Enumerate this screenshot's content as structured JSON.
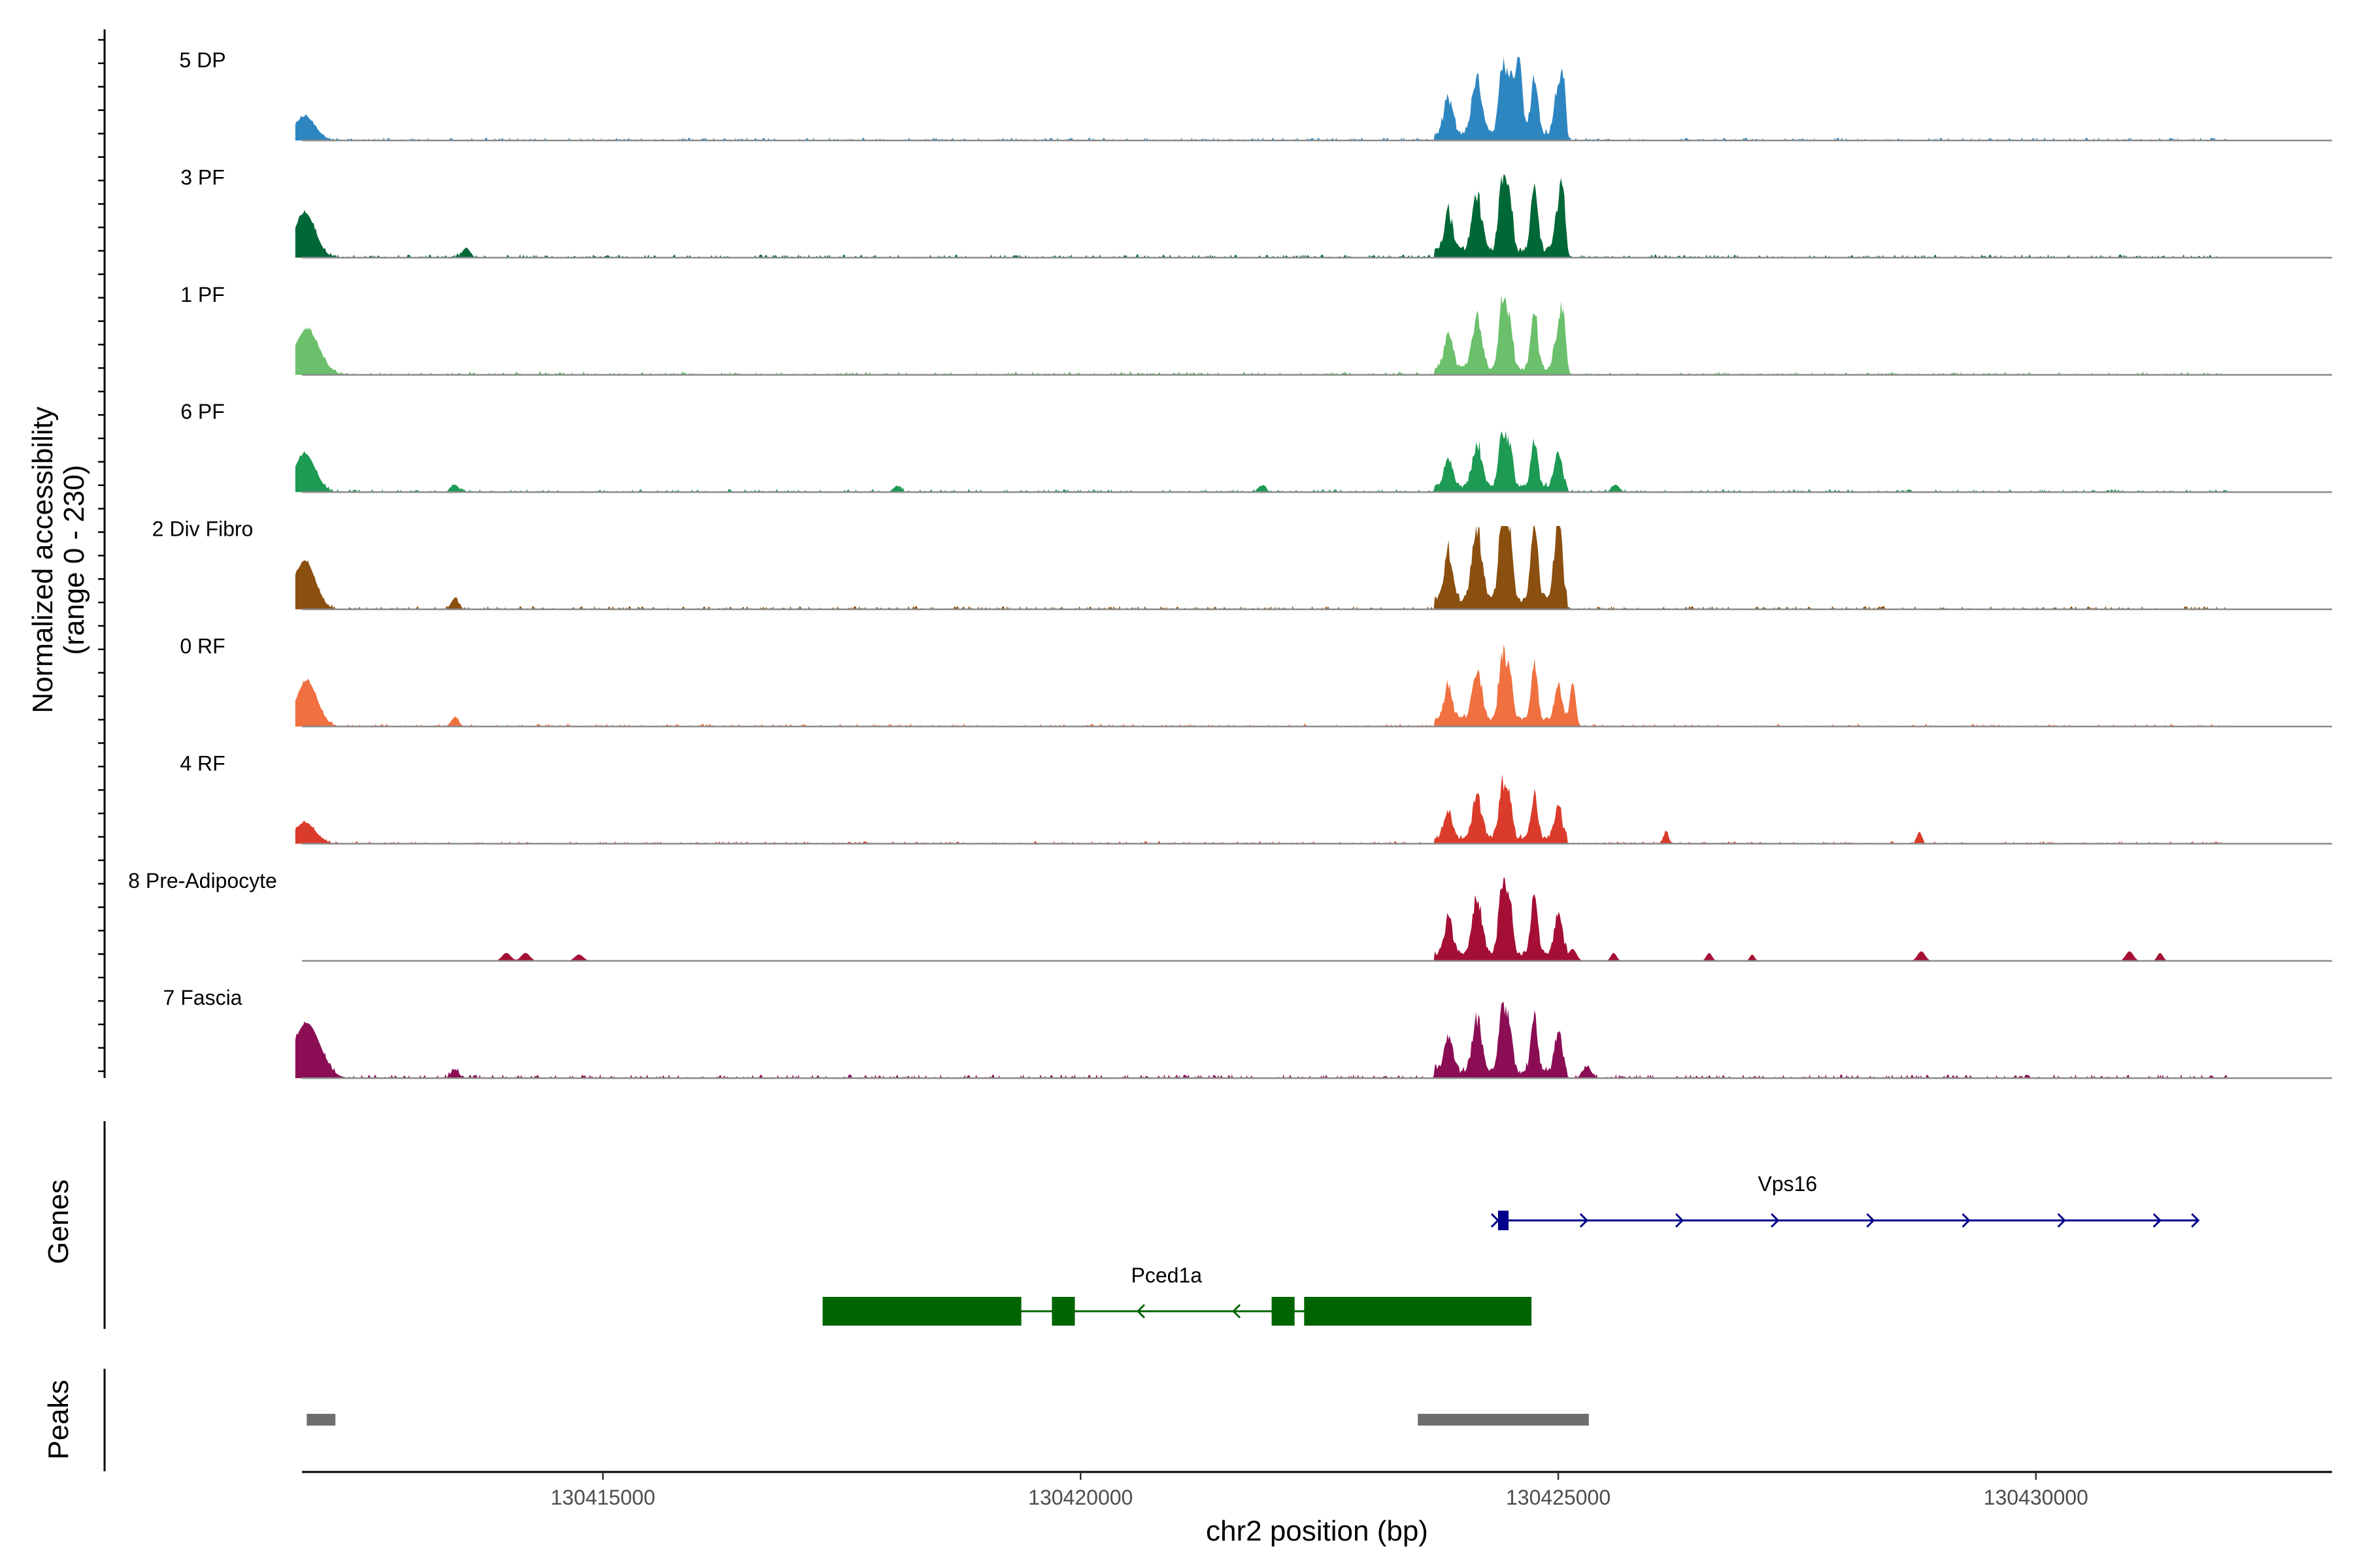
{
  "chart_data": {
    "type": "area",
    "title": "",
    "xlabel": "chr2 position (bp)",
    "ylabel_line1": "Normalized accessibility",
    "ylabel_line2": "(range 0 - 230)",
    "y_range": [
      0,
      230
    ],
    "xlim": [
      130411850,
      130433100
    ],
    "x_ticks": [
      130415000,
      130420000,
      130425000,
      130430000
    ],
    "x_tick_labels": [
      "130415000",
      "130420000",
      "130425000",
      "130430000"
    ],
    "track_panels": {
      "genes_label": "Genes",
      "peaks_label": "Peaks"
    },
    "series": [
      {
        "name": "5 DP",
        "color": "#2e86c1",
        "scale": 0.98,
        "baseline_noise": 0.035,
        "peaks": [
          [
            130411880,
            110,
            0.3
          ],
          [
            130424580,
            38,
            1.0
          ],
          [
            130425050,
            25,
            0.6
          ]
        ]
      },
      {
        "name": "3 PF",
        "color": "#006837",
        "scale": 1.0,
        "baseline_noise": 0.04,
        "peaks": [
          [
            130411880,
            110,
            0.55
          ],
          [
            130413570,
            40,
            0.12
          ],
          [
            130425050,
            28,
            0.5
          ]
        ]
      },
      {
        "name": "1 PF",
        "color": "#6cc06c",
        "scale": 0.92,
        "baseline_noise": 0.04,
        "peaks": [
          [
            130411900,
            130,
            0.6
          ],
          [
            130425050,
            28,
            0.55
          ]
        ]
      },
      {
        "name": "6 PF",
        "color": "#1d9a53",
        "scale": 0.76,
        "baseline_noise": 0.045,
        "peaks": [
          [
            130411880,
            110,
            0.62
          ],
          [
            130413450,
            40,
            0.12
          ],
          [
            130418080,
            40,
            0.1
          ],
          [
            130421900,
            40,
            0.1
          ],
          [
            130425600,
            40,
            0.12
          ]
        ]
      },
      {
        "name": "2 Div Fibro",
        "color": "#8b4f0f",
        "scale": 1.32,
        "baseline_noise": 0.03,
        "peaks": [
          [
            130411880,
            110,
            0.45
          ],
          [
            130413450,
            40,
            0.1
          ],
          [
            130425000,
            28,
            0.4
          ]
        ]
      },
      {
        "name": "0 RF",
        "color": "#f07040",
        "scale": 0.9,
        "baseline_noise": 0.035,
        "peaks": [
          [
            130411900,
            110,
            0.62
          ],
          [
            130413450,
            40,
            0.12
          ],
          [
            130425150,
            30,
            0.6
          ]
        ]
      },
      {
        "name": "4 RF",
        "color": "#db3b2b",
        "scale": 0.74,
        "baseline_noise": 0.04,
        "peaks": [
          [
            130411880,
            110,
            0.35
          ],
          [
            130426130,
            25,
            0.2
          ],
          [
            130428780,
            25,
            0.2
          ]
        ]
      },
      {
        "name": "8 Pre-Adipocyte",
        "color": "#a50f35",
        "scale": 0.98,
        "baseline_noise": 0.0,
        "peaks": [
          [
            130413990,
            45,
            0.1
          ],
          [
            130414190,
            45,
            0.1
          ],
          [
            130414750,
            45,
            0.08
          ],
          [
            130425150,
            40,
            0.15
          ],
          [
            130425580,
            30,
            0.1
          ],
          [
            130426580,
            30,
            0.1
          ],
          [
            130427030,
            25,
            0.08
          ],
          [
            130428800,
            40,
            0.12
          ],
          [
            130430980,
            40,
            0.12
          ],
          [
            130431300,
            30,
            0.1
          ]
        ]
      },
      {
        "name": "7 Fascia",
        "color": "#8b0e55",
        "scale": 0.9,
        "baseline_noise": 0.05,
        "peaks": [
          [
            130411900,
            140,
            0.75
          ],
          [
            130413450,
            40,
            0.12
          ],
          [
            130425300,
            45,
            0.15
          ]
        ]
      }
    ],
    "shared_profile": {
      "core_peaks": [
        [
          130423850,
          45,
          0.45
        ],
        [
          130424150,
          50,
          0.68
        ],
        [
          130424420,
          40,
          0.92
        ],
        [
          130424500,
          28,
          0.55
        ],
        [
          130424750,
          35,
          0.75
        ],
        [
          130425000,
          40,
          0.52
        ]
      ],
      "core_plateau": [
        130423700,
        130425100,
        0.12
      ]
    },
    "genes": [
      {
        "name": "Vps16",
        "strand": "+",
        "start": 130424370,
        "end": 130431700,
        "color": "#00008b",
        "exons": [
          [
            130424370,
            130424480
          ]
        ],
        "arrows": [
          130424370,
          130425300,
          130426300,
          130427300,
          130428300,
          130429300,
          130430300,
          130431300,
          130431700
        ]
      },
      {
        "name": "Pced1a",
        "strand": "-",
        "start": 130417300,
        "end": 130424720,
        "color": "#006400",
        "exons": [
          [
            130417300,
            130419380
          ],
          [
            130419700,
            130419940
          ],
          [
            130422000,
            130422240
          ],
          [
            130422340,
            130424720
          ]
        ],
        "arrows": [
          130420600,
          130421600
        ]
      }
    ],
    "peaks_track": [
      {
        "start": 130411900,
        "end": 130412200
      },
      {
        "start": 130423530,
        "end": 130425320
      }
    ]
  }
}
